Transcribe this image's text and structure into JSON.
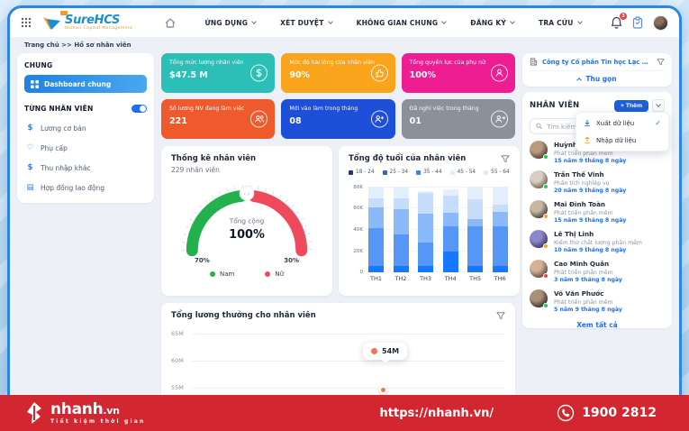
{
  "app": {
    "brand": {
      "name": "SureHCS",
      "tagline": "Human Capital Management"
    },
    "nav": [
      {
        "label": "ỨNG DỤNG"
      },
      {
        "label": "XÉT DUYỆT"
      },
      {
        "label": "KHÔNG GIAN CHUNG"
      },
      {
        "label": "ĐĂNG KÝ"
      },
      {
        "label": "TRA CỨU"
      }
    ],
    "notification_badge": "3"
  },
  "breadcrumb": "Trang chủ >> Hồ sơ nhân viên",
  "sidebar": {
    "section1": "CHUNG",
    "active_item": "Dashboard chung",
    "section2": "TỪNG NHÂN VIÊN",
    "items": [
      {
        "label": "Lương cơ bản",
        "icon": "dollar-icon",
        "glyph": "$"
      },
      {
        "label": "Phụ cấp",
        "icon": "heart-icon",
        "glyph": "♡"
      },
      {
        "label": "Thu nhập khác",
        "icon": "dollar-icon",
        "glyph": "$"
      },
      {
        "label": "Hợp đồng lao động",
        "icon": "document-icon",
        "glyph": "▤"
      }
    ]
  },
  "stat_cards": [
    {
      "title": "Tổng mức lương nhân viên",
      "value": "$47.5 M",
      "color": "#2cbfb7",
      "icon": "dollar-circle-icon"
    },
    {
      "title": "Mức độ hài lòng của nhân viên",
      "value": "90%",
      "color": "#f9a41b",
      "icon": "thumbs-up-icon"
    },
    {
      "title": "Tổng quyền lực của phụ nữ",
      "value": "100%",
      "color": "#ef1d92",
      "icon": "user-icon"
    },
    {
      "title": "Số lượng NV đang làm việc",
      "value": "221",
      "color": "#ee5a2b",
      "icon": "users-icon"
    },
    {
      "title": "Mới vào làm trong tháng",
      "value": "08",
      "color": "#1d4fd8",
      "icon": "user-plus-icon"
    },
    {
      "title": "Đã nghỉ việc trong tháng",
      "value": "01",
      "color": "#8a919b",
      "icon": "user-leave-icon"
    }
  ],
  "gauge": {
    "title": "Thống kê nhân viên",
    "subtitle": "229 nhân viên",
    "center_label": "Tổng cộng",
    "center_value": "100%",
    "left_value": "70%",
    "right_value": "30%",
    "legend": [
      {
        "label": "Nam",
        "color": "#23b14d"
      },
      {
        "label": "Nữ",
        "color": "#ef4a5c"
      }
    ]
  },
  "age_chart": {
    "title": "Tổng độ tuổi của nhân viên"
  },
  "salary_chart": {
    "title": "Tổng lương thưởng cho nhân viên"
  },
  "company_bar": {
    "name": "Công ty Cổ phần Tin học Lạc Việt",
    "collapse_label": "Thu gọn"
  },
  "employees_panel": {
    "title": "NHÂN VIÊN",
    "add_button": "+ Thêm",
    "menu": [
      {
        "label": "Xuất dữ liệu",
        "icon": "download-icon",
        "checked": true
      },
      {
        "label": "Nhập dữ liệu",
        "icon": "upload-icon",
        "checked": false
      }
    ],
    "check_glyph": "✓",
    "search_placeholder": "Tìm kiếm",
    "view_all": "Xem tất cả",
    "list": [
      {
        "name": "Huỳnh Phước Hòa",
        "role": "Phát triển phần mềm",
        "tenure": "15 năm 9 tháng 8 ngày",
        "status_color": "#22c55e"
      },
      {
        "name": "Trần Thế Vinh",
        "role": "Phân tích nghiệp vụ",
        "tenure": "20 năm 9 tháng 8 ngày",
        "status_color": "#22c55e"
      },
      {
        "name": "Mai Đình Toàn",
        "role": "Phát triển phần mềm",
        "tenure": "15 năm 9 tháng 8 ngày",
        "status_color": "#f5a623"
      },
      {
        "name": "Lê Thị Linh",
        "role": "Kiểm thử chất lượng phần mềm",
        "tenure": "10 năm 9 tháng 8 ngày",
        "status_color": "#f5a623"
      },
      {
        "name": "Cao Minh Quân",
        "role": "Phát triển phần mềm",
        "tenure": "3 năm 9 tháng 8 ngày",
        "status_color": "#ef4444"
      },
      {
        "name": "Võ Văn Phước",
        "role": "Phát triển phần mềm",
        "tenure": "5 năm 9 tháng 8 ngày",
        "status_color": "#22c55e"
      }
    ]
  },
  "footer": {
    "brand": "nhanh",
    "brand_suffix": ".vn",
    "tagline": "Tiết kiệm thời gian",
    "url": "https://nhanh.vn/",
    "phone": "1900 2812",
    "bg_color": "#d22730"
  },
  "chart_data": [
    {
      "type": "gauge",
      "title": "Thống kê nhân viên",
      "subtitle": "229 nhân viên",
      "total_label": "Tổng cộng",
      "total_value": "100%",
      "segments": [
        {
          "label": "Nam",
          "value": 70,
          "color": "#23b14d"
        },
        {
          "label": "Nữ",
          "value": 30,
          "color": "#ef4a5c"
        }
      ]
    },
    {
      "type": "bar",
      "stacked": true,
      "title": "Tổng độ tuổi của nhân viên",
      "categories": [
        "TH1",
        "TH2",
        "TH3",
        "TH4",
        "TH5",
        "TH6"
      ],
      "unit": "K",
      "y_ticks": [
        "0",
        "20K",
        "40K",
        "60K",
        "80K"
      ],
      "y_max": 85,
      "series": [
        {
          "name": "18 - 24",
          "color": "#1677ff",
          "legend_color": "#16339e",
          "values": [
            6,
            6,
            6,
            20,
            6,
            6
          ]
        },
        {
          "name": "25 - 34",
          "color": "#5596f6",
          "legend_color": "#2563eb",
          "values": [
            36,
            30,
            22,
            23,
            37,
            37
          ]
        },
        {
          "name": "35 - 44",
          "color": "#8abaf9",
          "legend_color": "#3b82f6",
          "values": [
            19,
            24,
            27,
            13,
            7,
            14
          ]
        },
        {
          "name": "45 - 54",
          "color": "#c6defc",
          "legend_color": "#def3ec",
          "values": [
            9,
            10,
            20,
            16,
            19,
            7
          ]
        },
        {
          "name": "55 - 64",
          "color": "#e4effe",
          "legend_color": "#dbeafe",
          "values": [
            11,
            11,
            2,
            6,
            12,
            17
          ]
        }
      ],
      "legend_position": "top",
      "grid": true
    },
    {
      "type": "line",
      "title": "Tổng lương thưởng cho nhân viên",
      "visible_y_ticks": [
        "65M",
        "60M",
        "55M"
      ],
      "highlighted_point": {
        "value": "54M",
        "color": "#f0764b"
      },
      "note": "chart partially cut off by footer banner"
    }
  ]
}
